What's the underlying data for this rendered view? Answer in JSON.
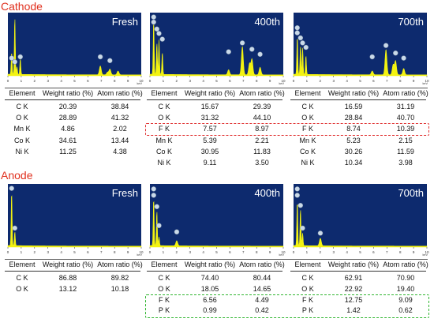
{
  "colors": {
    "section_title": "#e0301e",
    "plot_bg": "#0d2a6e",
    "spectrum": "#f3f311",
    "highlight_cathode": "#e03030",
    "highlight_anode": "#2fb52f",
    "marker": "#c9d9e9"
  },
  "cathode": {
    "title": "Cathode",
    "spectra": [
      {
        "label": "Fresh",
        "peaks": [
          [
            0.28,
            0.35
          ],
          [
            0.52,
            0.9
          ],
          [
            0.68,
            0.12
          ],
          [
            0.93,
            0.25
          ],
          [
            6.93,
            0.14
          ],
          [
            7.65,
            0.09
          ],
          [
            8.26,
            0.06
          ],
          [
            7.47,
            0.04
          ]
        ],
        "markers": [
          [
            0.28,
            0.28
          ],
          [
            0.52,
            0.22
          ],
          [
            0.93,
            0.3
          ],
          [
            6.93,
            0.3
          ],
          [
            7.65,
            0.24
          ]
        ]
      },
      {
        "label": "400th",
        "peaks": [
          [
            0.28,
            0.85
          ],
          [
            0.52,
            0.5
          ],
          [
            0.68,
            0.55
          ],
          [
            0.93,
            0.35
          ],
          [
            5.9,
            0.08
          ],
          [
            6.93,
            0.45
          ],
          [
            7.65,
            0.25
          ],
          [
            8.26,
            0.12
          ],
          [
            7.47,
            0.18
          ]
        ],
        "markers": [
          [
            0.28,
            0.93
          ],
          [
            0.28,
            0.85
          ],
          [
            0.52,
            0.74
          ],
          [
            0.68,
            0.67
          ],
          [
            0.93,
            0.58
          ],
          [
            5.9,
            0.38
          ],
          [
            6.93,
            0.52
          ],
          [
            7.65,
            0.42
          ],
          [
            8.26,
            0.34
          ]
        ]
      },
      {
        "label": "700th",
        "peaks": [
          [
            0.28,
            0.6
          ],
          [
            0.52,
            0.45
          ],
          [
            0.68,
            0.42
          ],
          [
            0.93,
            0.3
          ],
          [
            5.9,
            0.06
          ],
          [
            6.93,
            0.4
          ],
          [
            7.65,
            0.22
          ],
          [
            8.26,
            0.1
          ],
          [
            7.47,
            0.16
          ]
        ],
        "markers": [
          [
            0.28,
            0.76
          ],
          [
            0.28,
            0.68
          ],
          [
            0.52,
            0.6
          ],
          [
            0.68,
            0.52
          ],
          [
            0.93,
            0.45
          ],
          [
            5.9,
            0.3
          ],
          [
            6.93,
            0.48
          ],
          [
            7.65,
            0.36
          ],
          [
            8.26,
            0.28
          ]
        ]
      }
    ],
    "tables": [
      {
        "headers": [
          "Element",
          "Weight ratio (%)",
          "Atom ratio (%)"
        ],
        "rows": [
          [
            "C K",
            "20.39",
            "38.84"
          ],
          [
            "O K",
            "28.89",
            "41.32"
          ],
          [
            "Mn K",
            "4.86",
            "2.02"
          ],
          [
            "Co K",
            "34.61",
            "13.44"
          ],
          [
            "Ni K",
            "11.25",
            "4.38"
          ]
        ]
      },
      {
        "headers": [
          "Element",
          "Weight ratio (%)",
          "Atom ratio (%)"
        ],
        "rows": [
          [
            "C K",
            "15.67",
            "29.39"
          ],
          [
            "O K",
            "31.32",
            "44.10"
          ],
          [
            "F K",
            "7.57",
            "8.97"
          ],
          [
            "Mn K",
            "5.39",
            "2.21"
          ],
          [
            "Co K",
            "30.95",
            "11.83"
          ],
          [
            "Ni K",
            "9.11",
            "3.50"
          ]
        ]
      },
      {
        "headers": [
          "Element",
          "Weight ratio (%)",
          "Atom ratio (%)"
        ],
        "rows": [
          [
            "C K",
            "16.59",
            "31.19"
          ],
          [
            "O K",
            "28.84",
            "40.70"
          ],
          [
            "F K",
            "8.74",
            "10.39"
          ],
          [
            "Mn K",
            "5.23",
            "2.15"
          ],
          [
            "Co K",
            "30.26",
            "11.59"
          ],
          [
            "Ni K",
            "10.34",
            "3.98"
          ]
        ]
      }
    ]
  },
  "anode": {
    "title": "Anode",
    "spectra": [
      {
        "label": "Fresh",
        "peaks": [
          [
            0.28,
            0.85
          ],
          [
            0.52,
            0.22
          ]
        ],
        "markers": [
          [
            0.28,
            0.93
          ],
          [
            0.52,
            0.3
          ]
        ]
      },
      {
        "label": "400th",
        "peaks": [
          [
            0.28,
            0.75
          ],
          [
            0.52,
            0.55
          ],
          [
            0.68,
            0.14
          ],
          [
            2.01,
            0.08
          ]
        ],
        "markers": [
          [
            0.28,
            0.92
          ],
          [
            0.28,
            0.82
          ],
          [
            0.52,
            0.64
          ],
          [
            0.68,
            0.34
          ],
          [
            2.01,
            0.24
          ]
        ]
      },
      {
        "label": "700th",
        "peaks": [
          [
            0.28,
            0.7
          ],
          [
            0.52,
            0.58
          ],
          [
            0.68,
            0.2
          ],
          [
            2.01,
            0.12
          ]
        ],
        "markers": [
          [
            0.28,
            0.92
          ],
          [
            0.28,
            0.82
          ],
          [
            0.52,
            0.66
          ],
          [
            0.68,
            0.3
          ],
          [
            2.01,
            0.22
          ]
        ]
      }
    ],
    "tables": [
      {
        "headers": [
          "Element",
          "Weight ratio (%)",
          "Atom ratio (%)"
        ],
        "rows": [
          [
            "C K",
            "86.88",
            "89.82"
          ],
          [
            "O K",
            "13.12",
            "10.18"
          ]
        ]
      },
      {
        "headers": [
          "Element",
          "Weight ratio (%)",
          "Atom ratio (%)"
        ],
        "rows": [
          [
            "C K",
            "74.40",
            "80.44"
          ],
          [
            "O K",
            "18.05",
            "14.65"
          ],
          [
            "F K",
            "6.56",
            "4.49"
          ],
          [
            "P K",
            "0.99",
            "0.42"
          ]
        ]
      },
      {
        "headers": [
          "Element",
          "Weight ratio (%)",
          "Atom ratio (%)"
        ],
        "rows": [
          [
            "C K",
            "62.91",
            "70.90"
          ],
          [
            "O K",
            "22.92",
            "19.40"
          ],
          [
            "F K",
            "12.75",
            "9.09"
          ],
          [
            "P K",
            "1.42",
            "0.62"
          ]
        ]
      }
    ]
  },
  "axis": {
    "ticks": [
      "0",
      "1",
      "2",
      "3",
      "4",
      "5",
      "6",
      "7",
      "8",
      "9",
      "10"
    ],
    "unit": "keV"
  }
}
